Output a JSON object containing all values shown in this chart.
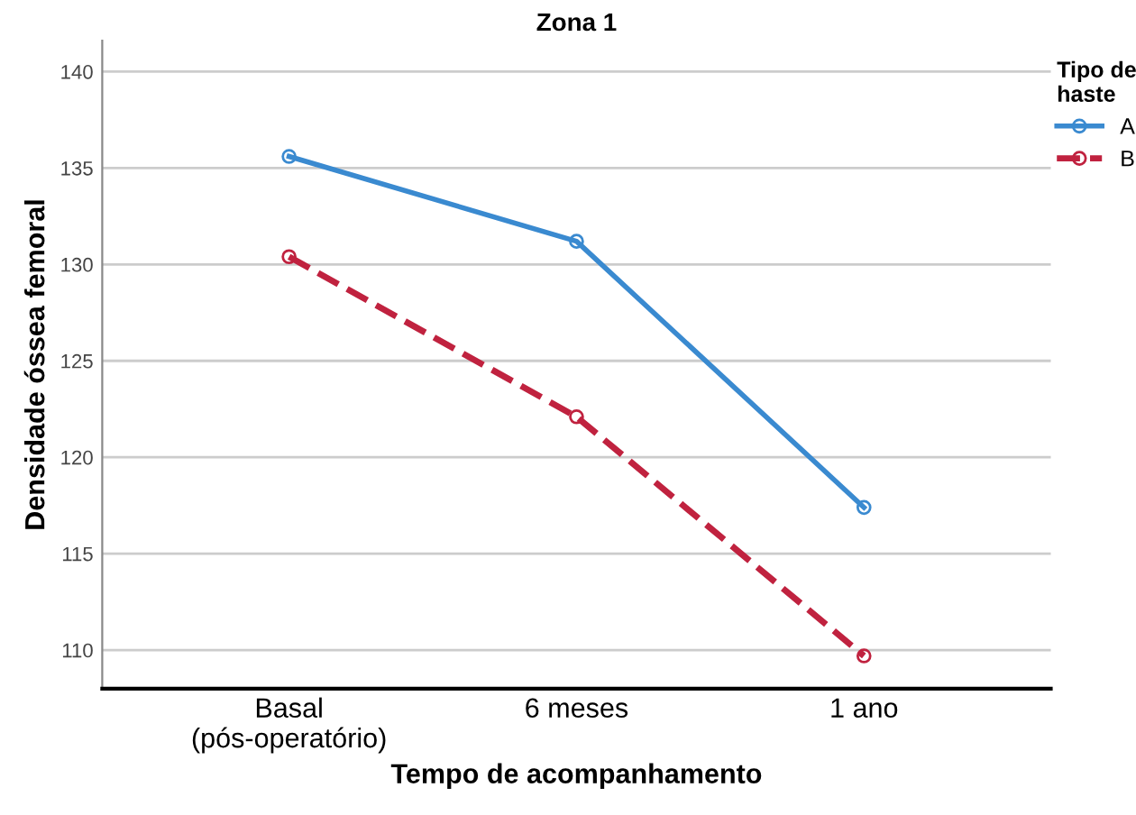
{
  "chart_data": {
    "type": "line",
    "title": "Zona 1",
    "xlabel": "Tempo de acompanhamento",
    "ylabel": "Densidade óssea femoral",
    "legend_title": "Tipo de\nhaste",
    "categories": [
      "Basal\n(pós-operatório)",
      "6 meses",
      "1 ano"
    ],
    "series": [
      {
        "name": "A",
        "color": "#3a8ad0",
        "values": [
          135.6,
          131.2,
          117.4
        ],
        "line_style": "solid"
      },
      {
        "name": "B",
        "color": "#c0223f",
        "values": [
          130.4,
          122.1,
          109.7
        ],
        "line_style": "dashed"
      }
    ],
    "ylim": [
      108,
      141.6
    ],
    "yticks": [
      110,
      115,
      120,
      125,
      130,
      135,
      140
    ],
    "grid": "y",
    "legend": "top right",
    "marker": "circle"
  }
}
